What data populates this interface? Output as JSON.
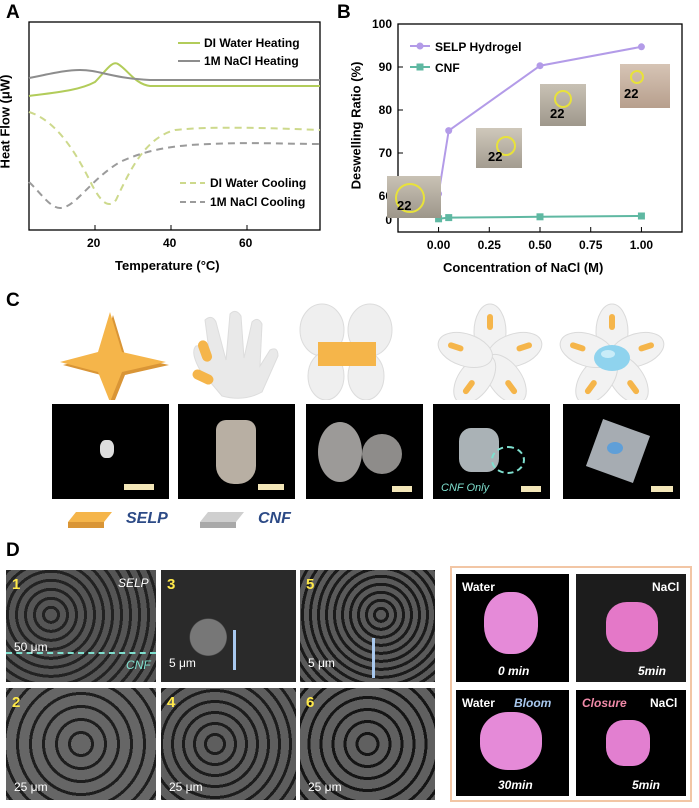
{
  "panel_labels": {
    "a": "A",
    "b": "B",
    "c": "C",
    "d": "D"
  },
  "panel_a": {
    "xlabel": "Temperature (°C)",
    "ylabel": "Heat Flow (μW)",
    "xticks": [
      "20",
      "40",
      "60"
    ],
    "legend_heating": [
      "DI Water Heating",
      "1M NaCl Heating"
    ],
    "legend_cooling": [
      "DI Water Cooling",
      "1M NaCl Cooling"
    ],
    "colors": {
      "di": "#b2cc5a",
      "nacl": "#8d8d8d"
    }
  },
  "chart_data": {
    "type": "line",
    "xlabel": "Concentration of NaCl (M)",
    "ylabel": "Deswelling  Ratio (%)",
    "x": [
      0,
      0.05,
      0.5,
      1.0
    ],
    "xticks": [
      "0.00",
      "0.25",
      "0.50",
      "0.75",
      "1.00"
    ],
    "yticks": [
      "0",
      "60",
      "70",
      "80",
      "90",
      "100"
    ],
    "ylim": [
      60,
      100
    ],
    "axis_break": true,
    "series": [
      {
        "name": "SELP Hydrogel",
        "values": [
          60.5,
          75.2,
          90.3,
          94.7
        ],
        "color": "#b39be8"
      },
      {
        "name": "CNF",
        "values": [
          0.3,
          0.6,
          0.8,
          1.0
        ],
        "color": "#5fb8a2"
      }
    ],
    "inset_text": [
      "22",
      "22",
      "22",
      "22"
    ]
  },
  "panel_c": {
    "legend": [
      "SELP",
      "CNF"
    ],
    "colors": {
      "selp": "#f5b54a",
      "cnf": "#cfcfcf"
    },
    "annotation": "CNF Only"
  },
  "panel_d": {
    "sem_numbers": [
      "1",
      "2",
      "3",
      "4",
      "5",
      "6"
    ],
    "sem_scales": [
      "50 μm",
      "25 μm",
      "5 μm",
      "25 μm",
      "5 μm",
      "25 μm"
    ],
    "sem_labels": {
      "selp": "SELP",
      "cnf": "CNF"
    },
    "photo_conditions": [
      "Water",
      "NaCl",
      "Water",
      "NaCl"
    ],
    "photo_times": [
      "0 min",
      "5min",
      "30min",
      "5min"
    ],
    "bloom": "Bloom",
    "closure": "Closure"
  }
}
